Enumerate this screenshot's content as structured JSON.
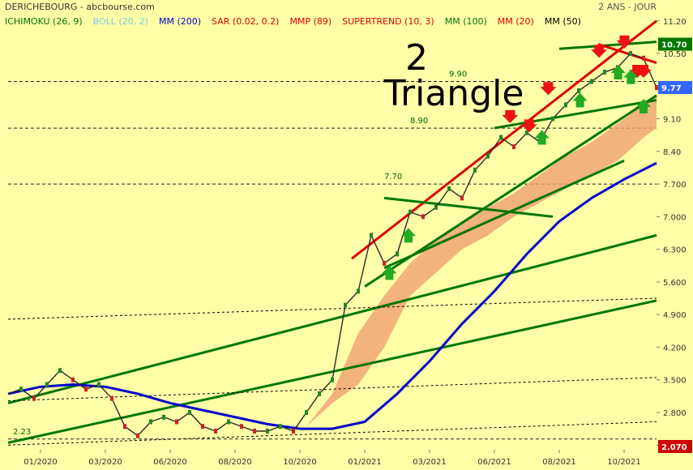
{
  "header": {
    "symbol": "DERICHEBOURG - abcbourse.com",
    "period": "2 ANS - JOUR"
  },
  "legend": [
    {
      "label": "ICHIMOKU (26, 9)",
      "color": "#007700"
    },
    {
      "label": "BOLL (20, 2)",
      "color": "#80c8e0"
    },
    {
      "label": "MM (200)",
      "color": "#0000cc"
    },
    {
      "label": "SAR (0.02, 0.2)",
      "color": "#dd0000"
    },
    {
      "label": "MMP (89)",
      "color": "#dd0000"
    },
    {
      "label": "SUPERTREND (10, 3)",
      "color": "#dd0000"
    },
    {
      "label": "MM (100)",
      "color": "#007700"
    },
    {
      "label": "MM (20)",
      "color": "#dd0000"
    },
    {
      "label": "MM (50)",
      "color": "#000000"
    }
  ],
  "annotation": {
    "line1": "2",
    "line2": "Triangle"
  },
  "chart_data": {
    "type": "line",
    "y_ticks": [
      "11.20",
      "10.50",
      "9.80",
      "9.10",
      "8.40",
      "7.700",
      "7.000",
      "6.300",
      "5.600",
      "4.900",
      "4.200",
      "3.500",
      "2.800",
      "2.100"
    ],
    "x_ticks": [
      "01/2020",
      "03/2020",
      "06/2020",
      "08/2020",
      "10/2020",
      "01/2021",
      "03/2021",
      "06/2021",
      "08/2021",
      "10/2021"
    ],
    "ylim": [
      2.0,
      11.3
    ],
    "price_labels": [
      {
        "value": 10.7,
        "label": "10.70",
        "color": "#007700"
      },
      {
        "value": 9.77,
        "label": "9.77",
        "color": "#3366ff"
      },
      {
        "value": 2.07,
        "label": "2.070",
        "color": "#cc0000"
      }
    ],
    "levels": [
      {
        "value": 9.9,
        "label": "9.90"
      },
      {
        "value": 8.9,
        "label": "8.90"
      },
      {
        "value": 7.7,
        "label": "7.70"
      },
      {
        "value": 2.23,
        "label": "2.23"
      }
    ],
    "price": {
      "x": [
        0,
        0.02,
        0.04,
        0.06,
        0.08,
        0.1,
        0.12,
        0.14,
        0.16,
        0.18,
        0.2,
        0.22,
        0.24,
        0.26,
        0.28,
        0.3,
        0.32,
        0.34,
        0.36,
        0.38,
        0.4,
        0.42,
        0.44,
        0.46,
        0.48,
        0.5,
        0.52,
        0.54,
        0.56,
        0.58,
        0.6,
        0.62,
        0.64,
        0.66,
        0.68,
        0.7,
        0.72,
        0.74,
        0.76,
        0.78,
        0.8,
        0.82,
        0.84,
        0.86,
        0.88,
        0.9,
        0.92,
        0.94,
        0.96,
        0.98,
        1.0
      ],
      "values": [
        3.2,
        3.3,
        3.1,
        3.4,
        3.7,
        3.5,
        3.3,
        3.4,
        3.1,
        2.5,
        2.3,
        2.6,
        2.7,
        2.6,
        2.8,
        2.5,
        2.4,
        2.6,
        2.5,
        2.4,
        2.4,
        2.5,
        2.4,
        2.8,
        3.2,
        3.5,
        5.1,
        5.4,
        6.6,
        6.0,
        6.2,
        7.1,
        7.0,
        7.2,
        7.6,
        7.4,
        8.0,
        8.3,
        8.7,
        8.5,
        8.8,
        8.6,
        9.1,
        9.4,
        9.7,
        9.9,
        10.1,
        10.2,
        10.5,
        10.4,
        9.77
      ]
    },
    "ma200": {
      "x": [
        0,
        0.05,
        0.1,
        0.15,
        0.2,
        0.25,
        0.3,
        0.35,
        0.4,
        0.45,
        0.5,
        0.55,
        0.6,
        0.65,
        0.7,
        0.75,
        0.8,
        0.85,
        0.9,
        0.95,
        1.0
      ],
      "values": [
        3.2,
        3.35,
        3.4,
        3.35,
        3.2,
        3.0,
        2.85,
        2.7,
        2.55,
        2.45,
        2.45,
        2.6,
        3.2,
        3.9,
        4.7,
        5.4,
        6.2,
        6.9,
        7.4,
        7.8,
        8.15
      ]
    },
    "cloud": {
      "x": [
        0.46,
        0.5,
        0.54,
        0.58,
        0.62,
        0.66,
        0.7,
        0.74,
        0.78,
        0.82,
        0.86,
        0.9,
        0.94,
        0.98,
        1.0
      ],
      "upper": [
        2.5,
        3.2,
        4.5,
        5.3,
        6.0,
        6.5,
        6.9,
        7.2,
        7.5,
        7.9,
        8.3,
        8.6,
        9.0,
        9.4,
        9.6
      ],
      "lower": [
        2.5,
        3.0,
        3.4,
        4.2,
        5.3,
        5.8,
        6.3,
        6.6,
        7.0,
        7.3,
        7.6,
        7.9,
        8.2,
        8.7,
        8.9
      ]
    },
    "trendlines": [
      {
        "x": [
          0,
          1
        ],
        "y": [
          3.0,
          6.6
        ],
        "color": "#007700"
      },
      {
        "x": [
          0,
          1
        ],
        "y": [
          2.15,
          5.2
        ],
        "color": "#007700"
      },
      {
        "x": [
          0,
          1
        ],
        "y": [
          4.8,
          5.25
        ],
        "color": "#000000"
      },
      {
        "x": [
          0,
          1
        ],
        "y": [
          3.05,
          3.55
        ],
        "color": "#000000"
      },
      {
        "x": [
          0,
          1
        ],
        "y": [
          2.1,
          2.6
        ],
        "color": "#000000"
      },
      {
        "x": [
          0.53,
          1.0
        ],
        "y": [
          6.1,
          11.2
        ],
        "color": "#dd0000"
      },
      {
        "x": [
          0.58,
          0.84
        ],
        "y": [
          7.4,
          7.0
        ],
        "color": "#007700"
      },
      {
        "x": [
          0.55,
          1.0
        ],
        "y": [
          5.5,
          9.6
        ],
        "color": "#007700"
      },
      {
        "x": [
          0.58,
          0.95
        ],
        "y": [
          5.9,
          8.2
        ],
        "color": "#007700"
      },
      {
        "x": [
          0.75,
          1.0
        ],
        "y": [
          8.9,
          9.5
        ],
        "color": "#007700"
      },
      {
        "x": [
          0.85,
          1.0
        ],
        "y": [
          10.6,
          10.75
        ],
        "color": "#007700"
      },
      {
        "x": [
          0.91,
          1.0
        ],
        "y": [
          10.7,
          10.3
        ],
        "color": "#dd0000"
      }
    ],
    "arrows_down_x": [
      0.79,
      0.82,
      0.85,
      0.93,
      0.97,
      0.99,
      1.0
    ],
    "arrows_up_x": [
      0.6,
      0.63,
      0.84,
      0.9,
      0.96,
      0.98,
      1.0
    ]
  }
}
